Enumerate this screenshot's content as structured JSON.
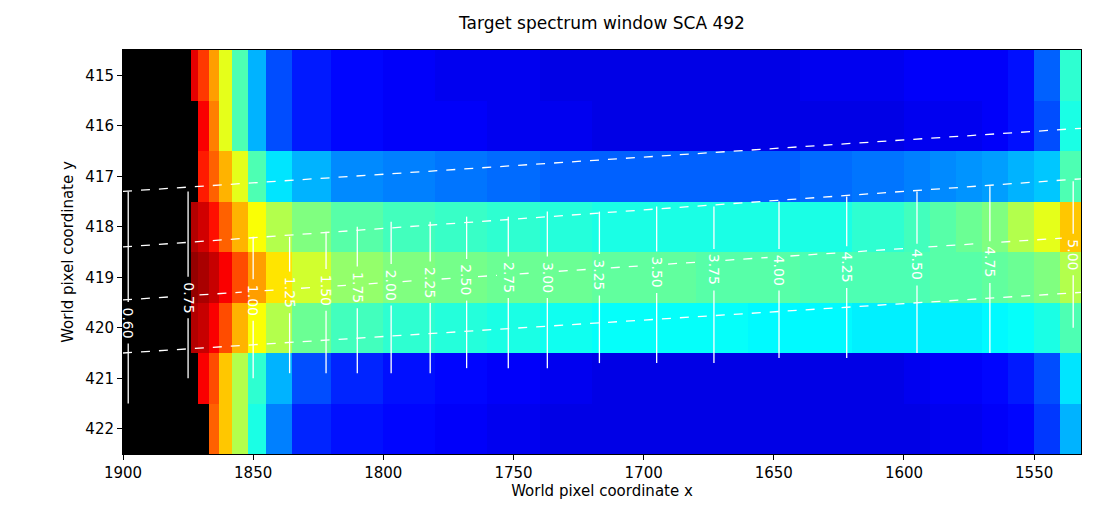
{
  "chart_data": {
    "type": "heatmap",
    "title": "Target spectrum window SCA 492",
    "x_label": "World pixel coordinate x",
    "y_label": "World pixel coordinate y",
    "x_edges": [
      1532,
      1540,
      1550,
      1560,
      1570,
      1580,
      1590,
      1600,
      1620,
      1640,
      1660,
      1680,
      1700,
      1720,
      1740,
      1760,
      1780,
      1800,
      1820,
      1835,
      1845,
      1852,
      1858,
      1863,
      1867,
      1871,
      1874,
      1900
    ],
    "y": [
      415,
      416,
      417,
      418,
      419,
      420,
      421,
      422
    ],
    "z": [
      [
        0.42,
        0.22,
        0.14,
        0.12,
        0.12,
        0.12,
        0.12,
        0.11,
        0.11,
        0.1,
        0.1,
        0.1,
        0.1,
        0.1,
        0.11,
        0.11,
        0.12,
        0.13,
        0.15,
        0.2,
        0.3,
        0.45,
        0.6,
        0.72,
        0.82,
        0.9,
        null
      ],
      [
        0.4,
        0.2,
        0.14,
        0.12,
        0.11,
        0.11,
        0.11,
        0.1,
        0.1,
        0.1,
        0.1,
        0.1,
        0.1,
        0.11,
        0.11,
        0.12,
        0.12,
        0.13,
        0.15,
        0.2,
        0.3,
        0.45,
        0.6,
        0.75,
        0.88,
        null,
        null
      ],
      [
        0.45,
        0.32,
        0.3,
        0.28,
        0.27,
        0.26,
        0.25,
        0.24,
        0.23,
        0.22,
        0.22,
        0.22,
        0.22,
        0.22,
        0.23,
        0.24,
        0.25,
        0.26,
        0.3,
        0.35,
        0.45,
        0.6,
        0.7,
        0.78,
        0.85,
        null,
        null
      ],
      [
        0.68,
        0.6,
        0.55,
        0.5,
        0.48,
        0.46,
        0.44,
        0.42,
        0.4,
        0.4,
        0.4,
        0.4,
        0.4,
        0.41,
        0.42,
        0.43,
        0.44,
        0.46,
        0.5,
        0.55,
        0.62,
        0.7,
        0.78,
        0.86,
        0.92,
        0.95,
        null
      ],
      [
        0.55,
        0.5,
        0.48,
        0.47,
        0.46,
        0.46,
        0.45,
        0.45,
        0.45,
        0.46,
        0.46,
        0.47,
        0.47,
        0.48,
        0.48,
        0.49,
        0.5,
        0.52,
        0.58,
        0.65,
        0.72,
        0.8,
        0.88,
        0.93,
        0.96,
        0.98,
        null
      ],
      [
        0.45,
        0.4,
        0.38,
        0.37,
        0.36,
        0.36,
        0.36,
        0.36,
        0.37,
        0.37,
        0.38,
        0.38,
        0.38,
        0.39,
        0.4,
        0.41,
        0.42,
        0.44,
        0.48,
        0.55,
        0.62,
        0.7,
        0.8,
        0.88,
        0.93,
        0.95,
        null
      ],
      [
        0.35,
        0.2,
        0.15,
        0.13,
        0.12,
        0.12,
        0.11,
        0.1,
        0.1,
        0.1,
        0.1,
        0.1,
        0.1,
        0.11,
        0.12,
        0.13,
        0.14,
        0.16,
        0.2,
        0.3,
        0.42,
        0.55,
        0.68,
        0.8,
        0.88,
        null,
        null
      ],
      [
        0.3,
        0.18,
        0.13,
        0.12,
        0.11,
        0.11,
        0.1,
        0.1,
        0.1,
        0.1,
        0.1,
        0.1,
        0.1,
        0.1,
        0.11,
        0.12,
        0.13,
        0.14,
        0.16,
        0.25,
        0.4,
        0.55,
        0.68,
        0.78,
        null,
        null,
        null
      ]
    ],
    "zlim": [
      0,
      1
    ],
    "xlim": [
      1900,
      1532
    ],
    "xticks": [
      1900,
      1850,
      1800,
      1750,
      1700,
      1650,
      1600,
      1550
    ],
    "ylim": [
      422.5,
      414.5
    ],
    "yticks": [
      415,
      416,
      417,
      418,
      419,
      420,
      421,
      422
    ],
    "lines": [
      {
        "line_style": "dashed",
        "color": "#ffffff",
        "x": [
          1900,
          1532
        ],
        "y": [
          417.3,
          416.05
        ]
      },
      {
        "line_style": "dashed",
        "color": "#ffffff",
        "x": [
          1900,
          1532
        ],
        "y": [
          418.4,
          417.05
        ]
      },
      {
        "line_style": "dashed",
        "color": "#ffffff",
        "x": [
          1900,
          1532
        ],
        "y": [
          419.45,
          418.2
        ]
      },
      {
        "line_style": "dashed",
        "color": "#ffffff",
        "x": [
          1900,
          1532
        ],
        "y": [
          420.5,
          419.3
        ]
      }
    ],
    "marks": {
      "line_style": "solid",
      "color": "#ffffff",
      "labels": [
        "0.60",
        "0.75",
        "1.00",
        "1.25",
        "1.50",
        "1.75",
        "2.00",
        "2.25",
        "2.50",
        "2.75",
        "3.00",
        "3.25",
        "3.50",
        "3.75",
        "4.00",
        "4.25",
        "4.50",
        "4.75",
        "5.00"
      ],
      "x": [
        1898,
        1875,
        1850,
        1836,
        1822,
        1810,
        1797,
        1782,
        1768,
        1752,
        1737,
        1717,
        1695,
        1673,
        1648,
        1622,
        1595,
        1567,
        1535
      ],
      "y_top": [
        417.3,
        417.3,
        418.2,
        418.2,
        418.1,
        418.0,
        417.9,
        417.9,
        417.8,
        417.8,
        417.7,
        417.7,
        417.6,
        417.6,
        417.5,
        417.4,
        417.3,
        417.2,
        417.1
      ],
      "y_bottom": [
        421.5,
        421.0,
        421.0,
        420.9,
        420.9,
        420.9,
        420.9,
        420.9,
        420.8,
        420.8,
        420.8,
        420.7,
        420.7,
        420.7,
        420.6,
        420.6,
        420.5,
        420.5,
        420.0
      ],
      "label_y": [
        419.9,
        419.4,
        419.45,
        419.3,
        419.25,
        419.2,
        419.15,
        419.1,
        419.05,
        419.0,
        419.0,
        418.95,
        418.9,
        418.85,
        418.85,
        418.8,
        418.75,
        418.7,
        418.55
      ]
    }
  }
}
